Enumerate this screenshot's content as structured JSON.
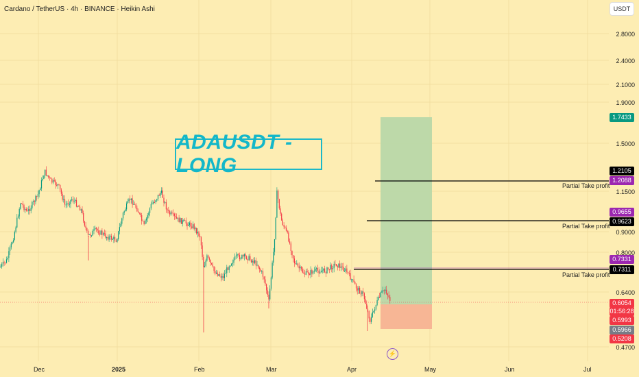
{
  "header": {
    "title": "Cardano / TetherUS · 4h · BINANCE · Heikin Ashi"
  },
  "currency_button": "USDT",
  "chart_title": "ADAUSDT - LONG",
  "colors": {
    "background": "#fdedb3",
    "up": "#089981",
    "down": "#f23645",
    "title": "#13b7c9",
    "target_zone": "#b9d8a9",
    "stop_zone": "#f7b394"
  },
  "icons": {
    "bolt": "lightning-icon"
  },
  "price_axis": [
    "2.8000",
    "2.4000",
    "2.1000",
    "1.9000",
    "1.5000",
    "1.1500",
    "0.9000",
    "0.8000",
    "0.6400",
    "0.4700"
  ],
  "price_tags": {
    "target": "1.7433",
    "tp1_black": "1.2105",
    "tp1_purple": "1.2088",
    "tp2_purple": "0.9655",
    "tp2_black": "0.9623",
    "tp3_purple": "0.7331",
    "tp3_black": "0.7311",
    "current": "0.6054",
    "countdown": "01:56:28",
    "entry": "0.5993",
    "gray": "0.5966",
    "stop": "0.5208"
  },
  "take_profit_labels": [
    "Partial Take profit",
    "Partial Take profit",
    "Partial Take profit"
  ],
  "time_axis": [
    "Dec",
    "2025",
    "Feb",
    "Mar",
    "Apr",
    "May",
    "Jun",
    "Jul"
  ]
}
